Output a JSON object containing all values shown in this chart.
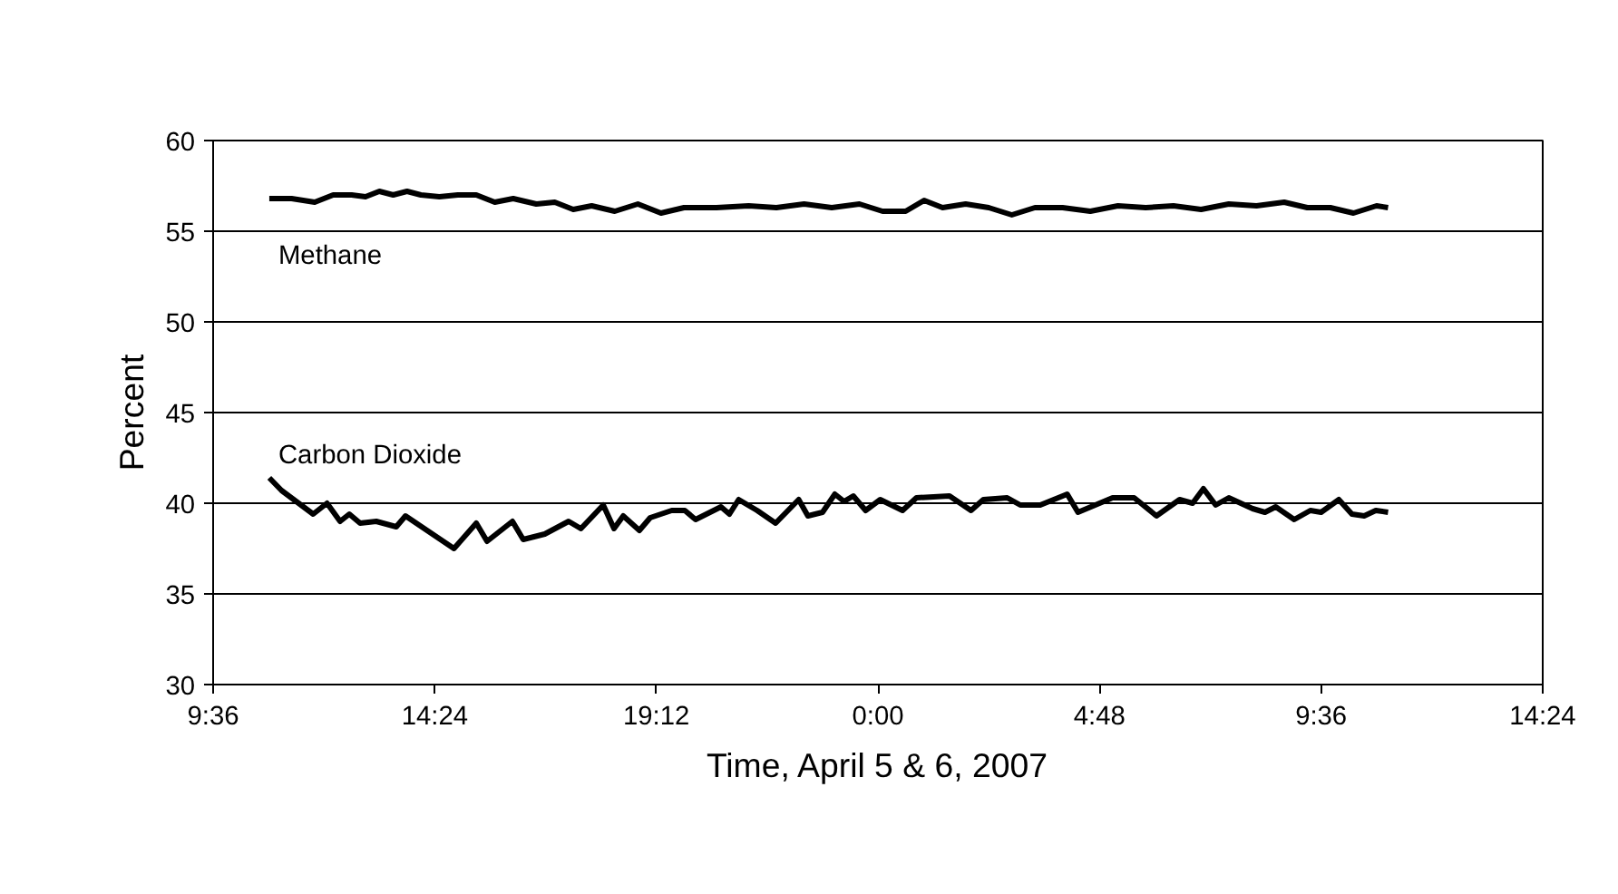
{
  "chart_data": {
    "type": "line",
    "xlabel": "Time, April 5 & 6, 2007",
    "ylabel": "Percent",
    "xlim": [
      "2007-04-05T09:36",
      "2007-04-06T14:24"
    ],
    "xticks": [
      {
        "value": "2007-04-05T09:36",
        "label": "9:36"
      },
      {
        "value": "2007-04-05T14:24",
        "label": "14:24"
      },
      {
        "value": "2007-04-05T19:12",
        "label": "19:12"
      },
      {
        "value": "2007-04-06T00:00",
        "label": "0:00"
      },
      {
        "value": "2007-04-06T04:48",
        "label": "4:48"
      },
      {
        "value": "2007-04-06T09:36",
        "label": "9:36"
      },
      {
        "value": "2007-04-06T14:24",
        "label": "14:24"
      }
    ],
    "ylim": [
      30,
      60
    ],
    "yticks": [
      30,
      35,
      40,
      45,
      50,
      55,
      60
    ],
    "grid": "y",
    "marker": "none",
    "line_style": "solid",
    "series": [
      {
        "name": "Methane",
        "color": "#000000",
        "x": [
          "2007-04-05T10:49",
          "2007-04-05T11:18",
          "2007-04-05T11:48",
          "2007-04-05T12:12",
          "2007-04-05T12:36",
          "2007-04-05T12:54",
          "2007-04-05T13:12",
          "2007-04-05T13:30",
          "2007-04-05T13:48",
          "2007-04-05T14:06",
          "2007-04-05T14:30",
          "2007-04-05T14:54",
          "2007-04-05T15:18",
          "2007-04-05T15:42",
          "2007-04-05T16:06",
          "2007-04-05T16:36",
          "2007-04-05T17:00",
          "2007-04-05T17:24",
          "2007-04-05T17:48",
          "2007-04-05T18:18",
          "2007-04-05T18:48",
          "2007-04-05T19:18",
          "2007-04-05T19:48",
          "2007-04-05T20:30",
          "2007-04-05T21:12",
          "2007-04-05T21:48",
          "2007-04-05T22:24",
          "2007-04-05T23:00",
          "2007-04-05T23:36",
          "2007-04-06T00:06",
          "2007-04-06T00:36",
          "2007-04-06T01:00",
          "2007-04-06T01:24",
          "2007-04-06T01:54",
          "2007-04-06T02:24",
          "2007-04-06T02:54",
          "2007-04-06T03:24",
          "2007-04-06T04:00",
          "2007-04-06T04:36",
          "2007-04-06T05:12",
          "2007-04-06T05:48",
          "2007-04-06T06:24",
          "2007-04-06T07:00",
          "2007-04-06T07:36",
          "2007-04-06T08:12",
          "2007-04-06T08:48",
          "2007-04-06T09:18",
          "2007-04-06T09:48",
          "2007-04-06T10:18",
          "2007-04-06T10:48",
          "2007-04-06T11:03"
        ],
        "values": [
          56.8,
          56.8,
          56.6,
          57.0,
          57.0,
          56.9,
          57.2,
          57.0,
          57.2,
          57.0,
          56.9,
          57.0,
          57.0,
          56.6,
          56.8,
          56.5,
          56.6,
          56.2,
          56.4,
          56.1,
          56.5,
          56.0,
          56.3,
          56.3,
          56.4,
          56.3,
          56.5,
          56.3,
          56.5,
          56.1,
          56.1,
          56.7,
          56.3,
          56.5,
          56.3,
          55.9,
          56.3,
          56.3,
          56.1,
          56.4,
          56.3,
          56.4,
          56.2,
          56.5,
          56.4,
          56.6,
          56.3,
          56.3,
          56.0,
          56.4,
          56.3
        ]
      },
      {
        "name": "Carbon Dioxide",
        "color": "#000000",
        "x": [
          "2007-04-05T10:49",
          "2007-04-05T11:05",
          "2007-04-05T11:46",
          "2007-04-05T12:04",
          "2007-04-05T12:21",
          "2007-04-05T12:33",
          "2007-04-05T12:47",
          "2007-04-05T13:08",
          "2007-04-05T13:34",
          "2007-04-05T13:46",
          "2007-04-05T14:49",
          "2007-04-05T15:18",
          "2007-04-05T15:32",
          "2007-04-05T16:05",
          "2007-04-05T16:19",
          "2007-04-05T16:47",
          "2007-04-05T17:18",
          "2007-04-05T17:34",
          "2007-04-05T18:03",
          "2007-04-05T18:17",
          "2007-04-05T18:29",
          "2007-04-05T18:50",
          "2007-04-05T19:04",
          "2007-04-05T19:32",
          "2007-04-05T19:49",
          "2007-04-05T20:03",
          "2007-04-05T20:36",
          "2007-04-05T20:47",
          "2007-04-05T20:59",
          "2007-04-05T21:23",
          "2007-04-05T21:47",
          "2007-04-05T22:17",
          "2007-04-05T22:29",
          "2007-04-05T22:48",
          "2007-04-05T23:04",
          "2007-04-05T23:16",
          "2007-04-05T23:28",
          "2007-04-05T23:44",
          "2007-04-06T00:03",
          "2007-04-06T00:32",
          "2007-04-06T00:50",
          "2007-04-06T01:33",
          "2007-04-06T02:01",
          "2007-04-06T02:17",
          "2007-04-06T02:48",
          "2007-04-06T03:05",
          "2007-04-06T03:31",
          "2007-04-06T04:06",
          "2007-04-06T04:20",
          "2007-04-06T05:05",
          "2007-04-06T05:33",
          "2007-04-06T06:02",
          "2007-04-06T06:32",
          "2007-04-06T06:49",
          "2007-04-06T07:03",
          "2007-04-06T07:19",
          "2007-04-06T07:36",
          "2007-04-06T08:07",
          "2007-04-06T08:23",
          "2007-04-06T08:37",
          "2007-04-06T09:01",
          "2007-04-06T09:22",
          "2007-04-06T09:36",
          "2007-04-06T09:59",
          "2007-04-06T10:16",
          "2007-04-06T10:32",
          "2007-04-06T10:47",
          "2007-04-06T11:03"
        ],
        "values": [
          41.4,
          40.7,
          39.4,
          40.0,
          39.0,
          39.4,
          38.9,
          39.0,
          38.7,
          39.3,
          37.5,
          38.9,
          37.9,
          39.0,
          38.0,
          38.3,
          39.0,
          38.6,
          39.9,
          38.6,
          39.3,
          38.5,
          39.2,
          39.6,
          39.6,
          39.1,
          39.8,
          39.4,
          40.2,
          39.6,
          38.9,
          40.2,
          39.3,
          39.5,
          40.5,
          40.1,
          40.4,
          39.6,
          40.2,
          39.6,
          40.3,
          40.4,
          39.6,
          40.2,
          40.3,
          39.9,
          39.9,
          40.5,
          39.5,
          40.3,
          40.3,
          39.3,
          40.2,
          40.0,
          40.8,
          39.9,
          40.3,
          39.7,
          39.5,
          39.8,
          39.1,
          39.6,
          39.5,
          40.2,
          39.4,
          39.3,
          39.6,
          39.5
        ]
      }
    ]
  }
}
